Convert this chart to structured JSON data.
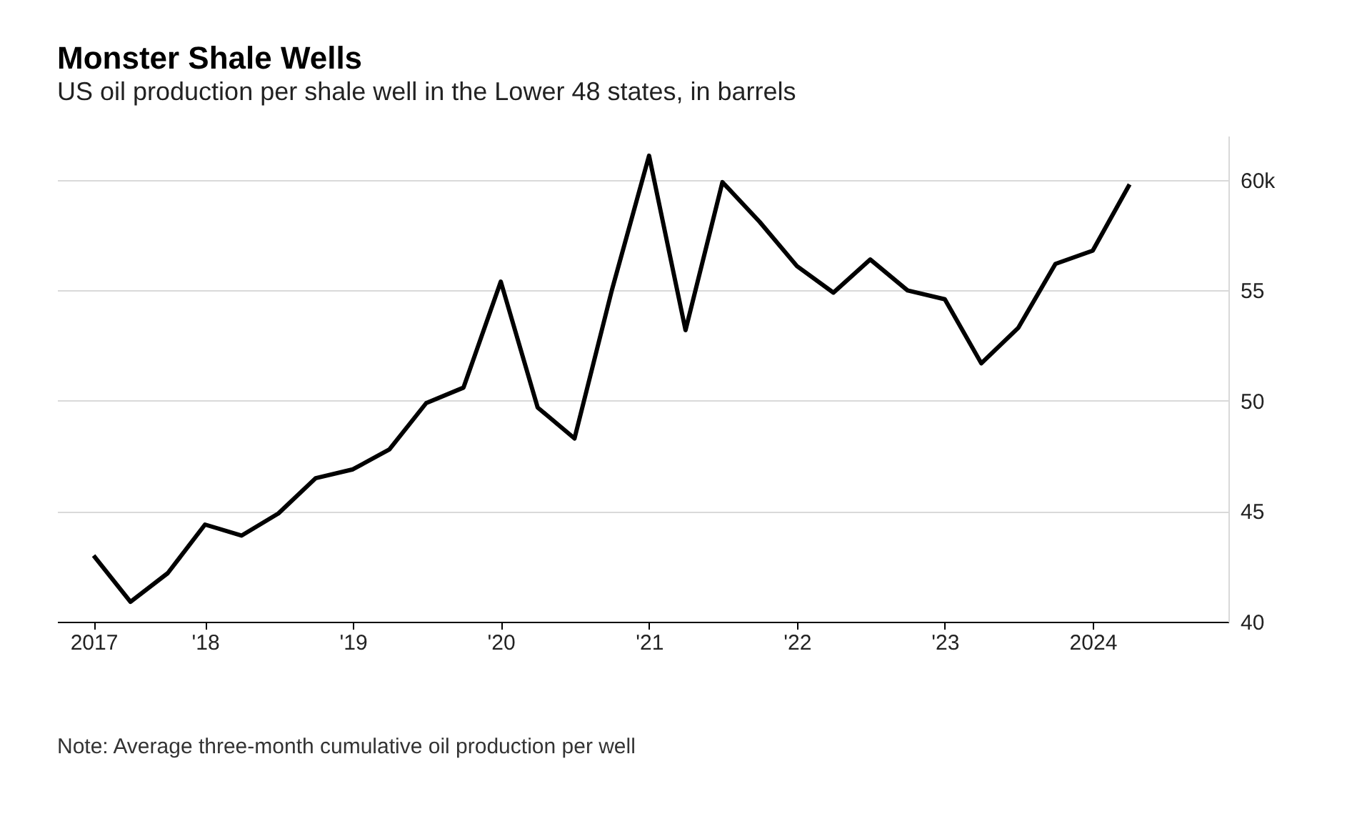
{
  "chart_data": {
    "type": "line",
    "title": "Monster Shale Wells",
    "subtitle": "US oil production per shale well in the Lower 48 states, in barrels",
    "x": [
      "2017-04",
      "2017-07",
      "2017-10",
      "2018-01",
      "2018-04",
      "2018-07",
      "2018-10",
      "2019-01",
      "2019-04",
      "2019-07",
      "2019-10",
      "2020-01",
      "2020-04",
      "2020-07",
      "2020-10",
      "2021-01",
      "2021-04",
      "2021-07",
      "2021-10",
      "2022-01",
      "2022-04",
      "2022-07",
      "2022-10",
      "2023-01",
      "2023-04",
      "2023-07",
      "2023-10",
      "2024-01",
      "2024-04"
    ],
    "series": [
      {
        "color": "#000000",
        "values": [
          43.0,
          40.9,
          42.2,
          44.4,
          43.9,
          44.9,
          46.5,
          46.9,
          47.8,
          49.9,
          50.6,
          55.4,
          49.7,
          48.3,
          55.0,
          61.1,
          53.2,
          59.9,
          58.1,
          56.1,
          54.9,
          56.4,
          55.0,
          54.6,
          51.7,
          53.3,
          56.2,
          56.8,
          59.8
        ]
      }
    ],
    "xlim": [
      "2017-01",
      "2024-12"
    ],
    "xticks": [
      {
        "value": "2017-04",
        "label": "2017"
      },
      {
        "value": "2018-01",
        "label": "'18"
      },
      {
        "value": "2019-01",
        "label": "'19"
      },
      {
        "value": "2020-01",
        "label": "'20"
      },
      {
        "value": "2021-01",
        "label": "'21"
      },
      {
        "value": "2022-01",
        "label": "'22"
      },
      {
        "value": "2023-01",
        "label": "'23"
      },
      {
        "value": "2024-01",
        "label": "2024"
      }
    ],
    "ylim": [
      40,
      62
    ],
    "yticks": [
      40,
      45,
      50,
      55,
      {
        "value": 60,
        "label": "60k"
      }
    ],
    "grid": "y",
    "marker": "none",
    "line_style": "solid",
    "annotations": [
      "Note: Average three-month cumulative oil production per well"
    ]
  }
}
